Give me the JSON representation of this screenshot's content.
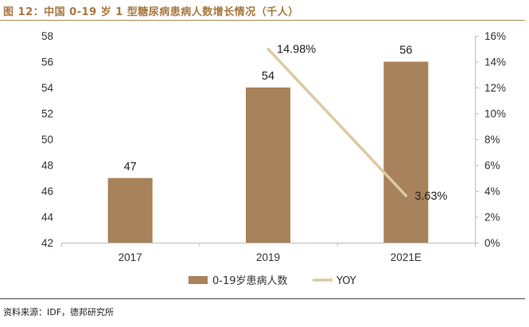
{
  "figure": {
    "title": "图 12：中国 0-19 岁 1 型糖尿病患病人数增长情况（千人）",
    "source": "资料来源：IDF，德邦研究所"
  },
  "colors": {
    "bar": "#a8825a",
    "line": "#dccaa3",
    "title": "#a8773d",
    "axis": "#bfbfbf"
  },
  "chart_data": {
    "type": "bar",
    "title": "中国 0-19 岁 1 型糖尿病患病人数增长情况（千人）",
    "categories": [
      "2017",
      "2019",
      "2021E"
    ],
    "series": [
      {
        "name": "0-19岁患病人数",
        "type": "bar",
        "axis": "left",
        "values": [
          47,
          54,
          56
        ],
        "labels": [
          "47",
          "54",
          "56"
        ]
      },
      {
        "name": "YOY",
        "type": "line",
        "axis": "right",
        "points": [
          {
            "category": "2019",
            "value": 14.98,
            "label": "14.98%"
          },
          {
            "category": "2021E",
            "value": 3.63,
            "label": "3.63%"
          }
        ]
      }
    ],
    "left_axis": {
      "min": 42,
      "max": 58,
      "step": 2,
      "ticks": [
        "42",
        "44",
        "46",
        "48",
        "50",
        "52",
        "54",
        "56",
        "58"
      ]
    },
    "right_axis": {
      "min": 0,
      "max": 16,
      "step": 2,
      "ticks": [
        "0%",
        "2%",
        "4%",
        "6%",
        "8%",
        "10%",
        "12%",
        "14%",
        "16%"
      ]
    },
    "legend": {
      "position": "bottom",
      "items": [
        "0-19岁患病人数",
        "YOY"
      ]
    },
    "grid": false
  }
}
